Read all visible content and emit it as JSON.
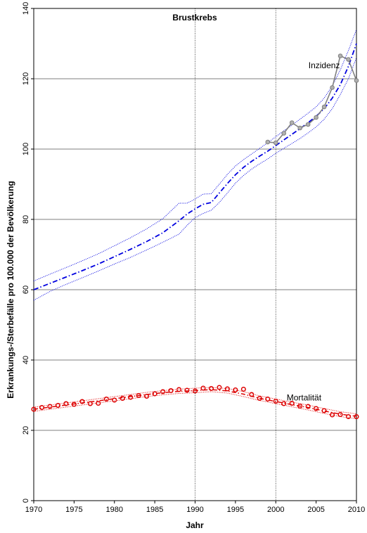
{
  "chart_data": {
    "type": "line",
    "title": "Brustkrebs",
    "xlabel": "Jahr",
    "ylabel": "Erkrankungs-/Sterbefälle pro 100.000 der Bevölkerung",
    "xlim": [
      1970,
      2010
    ],
    "ylim": [
      0,
      140
    ],
    "xticks": [
      1970,
      1975,
      1980,
      1985,
      1990,
      1995,
      2000,
      2005,
      2010
    ],
    "yticks": [
      0,
      20,
      40,
      60,
      80,
      100,
      120,
      140
    ],
    "grid": "horizontal lines at major y ticks; dotted vertical reference lines at 1990 and 2000",
    "vlines": [
      1990,
      2000
    ],
    "annotations": [
      {
        "text": "Inzidenz",
        "x": 2006,
        "y": 123
      },
      {
        "text": "Mortalität",
        "x": 2003.5,
        "y": 28.5
      }
    ],
    "colors": {
      "incidence": "#0000e0",
      "incidence_observed": "#808080",
      "mortality": "#dd0000",
      "grid": "#000000"
    },
    "series": [
      {
        "key": "inc_fit",
        "x": [
          1970,
          1972,
          1974,
          1976,
          1978,
          1980,
          1982,
          1984,
          1986,
          1988,
          1989,
          1990,
          1991,
          1992,
          1993,
          1994,
          1995,
          1996,
          1997,
          1998,
          1999,
          2000,
          2001,
          2002,
          2003,
          2004,
          2005,
          2006,
          2007,
          2008,
          2009,
          2010
        ],
        "y": [
          60,
          61.8,
          63.6,
          65.4,
          67.3,
          69.4,
          71.5,
          73.7,
          76.2,
          79.6,
          81.5,
          83,
          84.3,
          84.8,
          87.5,
          90.2,
          92.7,
          94.8,
          96.5,
          98,
          99.4,
          101,
          102.6,
          104.2,
          105.8,
          107.5,
          109.3,
          111.5,
          114.5,
          118.3,
          123.5,
          130
        ]
      },
      {
        "key": "inc_upper",
        "x": [
          1970,
          1972,
          1974,
          1976,
          1978,
          1980,
          1982,
          1984,
          1986,
          1988,
          1989,
          1990,
          1991,
          1992,
          1993,
          1994,
          1995,
          1996,
          1997,
          1998,
          1999,
          2000,
          2001,
          2002,
          2003,
          2004,
          2005,
          2006,
          2007,
          2008,
          2009,
          2010
        ],
        "y": [
          62.5,
          64.4,
          66.3,
          68.2,
          70.2,
          72.5,
          74.8,
          77.3,
          80.2,
          84.6,
          84.6,
          85.8,
          87.2,
          87.3,
          90,
          92.8,
          95.2,
          97,
          98.6,
          100.2,
          101.8,
          103.5,
          105.2,
          106.8,
          108.5,
          110.2,
          112,
          114.5,
          118,
          122.5,
          128,
          134
        ]
      },
      {
        "key": "inc_lower",
        "x": [
          1970,
          1972,
          1974,
          1976,
          1978,
          1980,
          1982,
          1984,
          1986,
          1988,
          1989,
          1990,
          1991,
          1992,
          1993,
          1994,
          1995,
          1996,
          1997,
          1998,
          1999,
          2000,
          2001,
          2002,
          2003,
          2004,
          2005,
          2006,
          2007,
          2008,
          2009,
          2010
        ],
        "y": [
          57,
          59.5,
          61.5,
          63.4,
          65.3,
          67.3,
          69.2,
          71.3,
          73.5,
          75.8,
          78.3,
          80.5,
          81.7,
          82.6,
          84.8,
          87.5,
          90.3,
          92.5,
          94.3,
          95.8,
          97.2,
          98.8,
          100.2,
          101.6,
          103,
          104.6,
          106.3,
          108.5,
          111.5,
          115.5,
          120,
          126
        ]
      },
      {
        "key": "inc_obs",
        "x": [
          1999,
          2000,
          2001,
          2002,
          2003,
          2004,
          2005,
          2006,
          2007,
          2008,
          2009,
          2010
        ],
        "y": [
          102,
          101.8,
          104.5,
          107.5,
          106,
          107,
          109,
          112,
          117.5,
          126.5,
          125.5,
          119.5
        ]
      },
      {
        "key": "mort_fit",
        "x": [
          1970,
          1972,
          1974,
          1976,
          1978,
          1980,
          1982,
          1984,
          1986,
          1988,
          1990,
          1992,
          1994,
          1996,
          1998,
          2000,
          2002,
          2004,
          2006,
          2008,
          2010
        ],
        "y": [
          26,
          26.6,
          27.2,
          27.8,
          28.4,
          29,
          29.6,
          30.2,
          30.7,
          31.1,
          31.3,
          31.6,
          31.2,
          30.3,
          29.1,
          28.2,
          27.3,
          26.5,
          25.5,
          24.6,
          24
        ]
      },
      {
        "key": "mort_upper",
        "x": [
          1970,
          1972,
          1974,
          1976,
          1978,
          1980,
          1982,
          1984,
          1986,
          1988,
          1990,
          1992,
          1994,
          1996,
          1998,
          2000,
          2002,
          2004,
          2006,
          2008,
          2010
        ],
        "y": [
          26.6,
          27.2,
          27.8,
          28.4,
          29,
          29.6,
          30.2,
          30.8,
          31.3,
          31.7,
          32,
          32.2,
          31.9,
          31,
          29.8,
          28.9,
          28,
          27.2,
          26.2,
          25.3,
          24.7
        ]
      },
      {
        "key": "mort_lower",
        "x": [
          1970,
          1972,
          1974,
          1976,
          1978,
          1980,
          1982,
          1984,
          1986,
          1988,
          1990,
          1992,
          1994,
          1996,
          1998,
          2000,
          2002,
          2004,
          2006,
          2008,
          2010
        ],
        "y": [
          25.4,
          26,
          26.6,
          27.2,
          27.8,
          28.4,
          29,
          29.6,
          30.1,
          30.5,
          30.7,
          31,
          30.6,
          29.6,
          28.5,
          27.6,
          26.7,
          25.8,
          24.8,
          23.9,
          23.3
        ]
      },
      {
        "key": "mort_obs",
        "x": [
          1970,
          1971,
          1972,
          1973,
          1974,
          1975,
          1976,
          1977,
          1978,
          1979,
          1980,
          1981,
          1982,
          1983,
          1984,
          1985,
          1986,
          1987,
          1988,
          1989,
          1990,
          1991,
          1992,
          1993,
          1994,
          1995,
          1996,
          1997,
          1998,
          1999,
          2000,
          2001,
          2002,
          2003,
          2004,
          2005,
          2006,
          2007,
          2008,
          2009,
          2010
        ],
        "y": [
          26,
          26.5,
          26.8,
          27.1,
          27.6,
          27.4,
          28.2,
          27.6,
          27.7,
          28.9,
          28.6,
          29.1,
          29.4,
          29.9,
          29.7,
          30.4,
          31,
          31.3,
          31.6,
          31.4,
          31.2,
          32,
          31.9,
          32.2,
          31.8,
          31.5,
          31.7,
          30.2,
          29.1,
          28.9,
          28.3,
          27.6,
          27.7,
          26.9,
          26.8,
          26.2,
          25.6,
          24.4,
          24.5,
          23.9,
          23.9
        ]
      }
    ]
  }
}
